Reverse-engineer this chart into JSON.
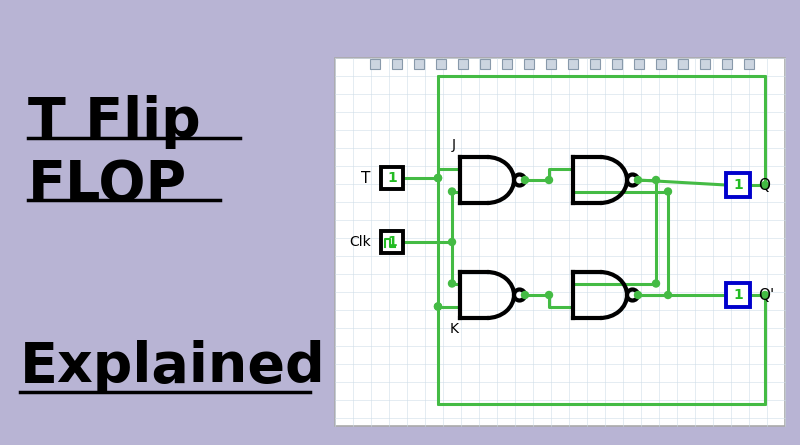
{
  "bg_color": "#b8b4d4",
  "green_wire": "#44bb44",
  "dark_green": "#226622",
  "gate_color": "#000000",
  "output_box_border": "#0000cc",
  "input_box_border": "#000000",
  "text_color": "#000000",
  "title_line1": "T Flip",
  "title_line2": "FLOP",
  "title_line3": "Explained",
  "title_fontsize": 40,
  "grid_color": "#d0dde8",
  "circuit_panel": [
    335,
    58,
    450,
    368
  ]
}
